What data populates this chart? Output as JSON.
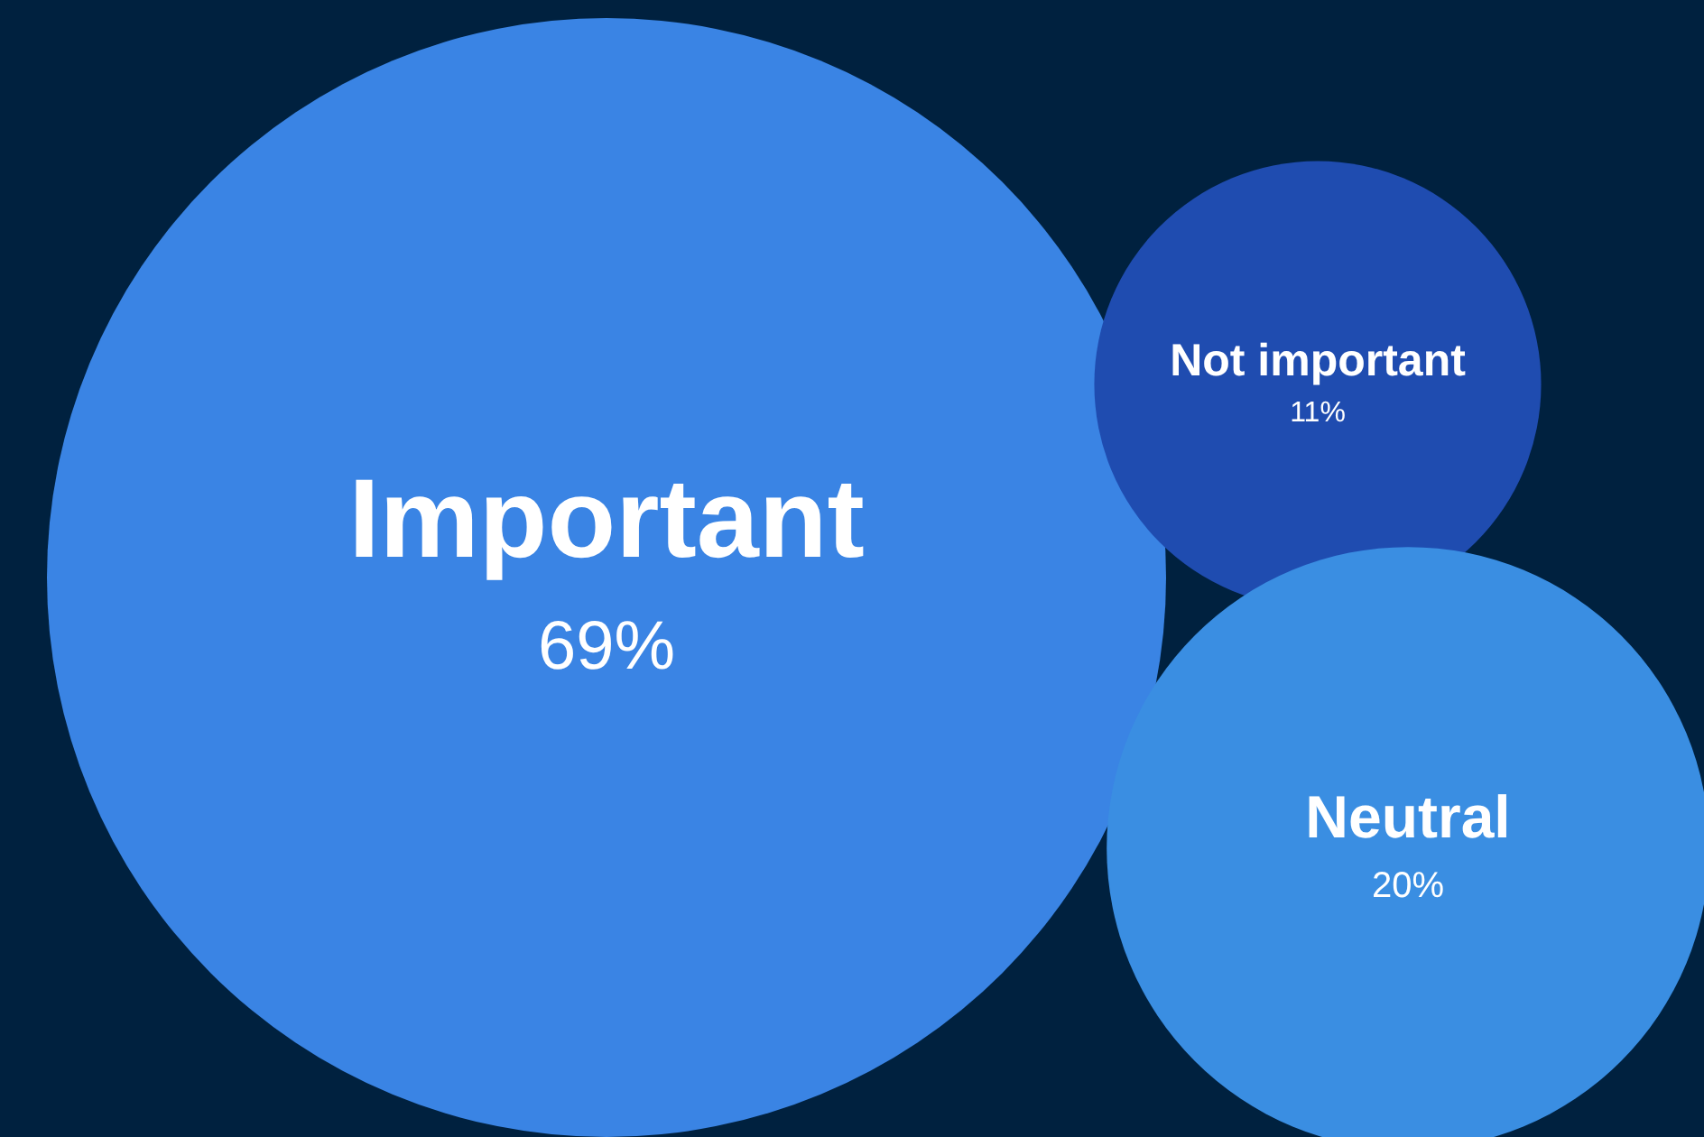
{
  "chart_data": {
    "type": "other",
    "categories": [
      "Important",
      "Not important",
      "Neutral"
    ],
    "values": [
      69,
      11,
      20
    ],
    "value_labels": [
      "69%",
      "11%",
      "20%"
    ],
    "colors": [
      "#3a84e4",
      "#1f4cb0",
      "#3a8ee2"
    ]
  }
}
